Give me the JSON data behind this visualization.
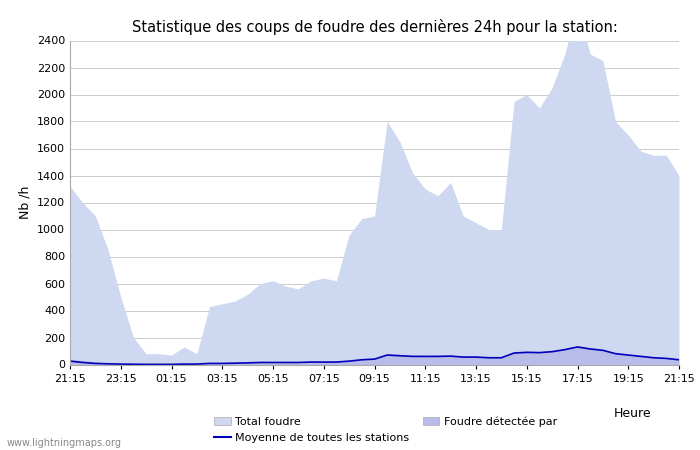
{
  "title": "Statistique des coups de foudre des dernières 24h pour la station:",
  "ylabel": "Nb /h",
  "xlabel": "Heure",
  "watermark": "www.lightningmaps.org",
  "ylim": [
    0,
    2400
  ],
  "yticks": [
    0,
    200,
    400,
    600,
    800,
    1000,
    1200,
    1400,
    1600,
    1800,
    2000,
    2200,
    2400
  ],
  "xtick_labels": [
    "21:15",
    "23:15",
    "01:15",
    "03:15",
    "05:15",
    "07:15",
    "09:15",
    "11:15",
    "13:15",
    "15:15",
    "17:15",
    "19:15",
    "21:15"
  ],
  "fill_color_total": "#ced8f0",
  "fill_color_detected": "#b8bce8",
  "line_color": "#0000bb",
  "background_color": "#ffffff",
  "grid_color": "#cccccc",
  "total_foudre": [
    1320,
    1200,
    1100,
    850,
    500,
    200,
    80,
    80,
    70,
    130,
    80,
    430,
    450,
    470,
    520,
    600,
    620,
    580,
    560,
    620,
    640,
    620,
    960,
    1080,
    1100,
    1800,
    1650,
    1420,
    1300,
    1250,
    1350,
    1100,
    1050,
    1000,
    1000,
    1950,
    2000,
    1900,
    2050,
    2300,
    2650,
    2300,
    2250,
    1800,
    1700,
    1580,
    1550,
    1550,
    1400
  ],
  "foudre_detectee": [
    40,
    30,
    20,
    10,
    5,
    3,
    2,
    2,
    2,
    5,
    5,
    10,
    12,
    12,
    15,
    18,
    20,
    20,
    20,
    22,
    22,
    22,
    30,
    40,
    45,
    80,
    75,
    70,
    65,
    65,
    70,
    60,
    60,
    55,
    55,
    90,
    100,
    95,
    100,
    115,
    140,
    120,
    110,
    85,
    75,
    65,
    55,
    50,
    40
  ],
  "moyenne": [
    25,
    15,
    8,
    5,
    3,
    2,
    1,
    1,
    1,
    3,
    3,
    8,
    8,
    10,
    12,
    15,
    15,
    15,
    15,
    18,
    18,
    18,
    25,
    35,
    40,
    70,
    65,
    60,
    60,
    60,
    62,
    55,
    55,
    50,
    50,
    85,
    90,
    88,
    95,
    110,
    130,
    115,
    105,
    80,
    70,
    60,
    50,
    45,
    35
  ],
  "legend_total": "Total foudre",
  "legend_detected": "Foudre détectée par",
  "legend_moyenne": "Moyenne de toutes les stations",
  "n_points": 49
}
